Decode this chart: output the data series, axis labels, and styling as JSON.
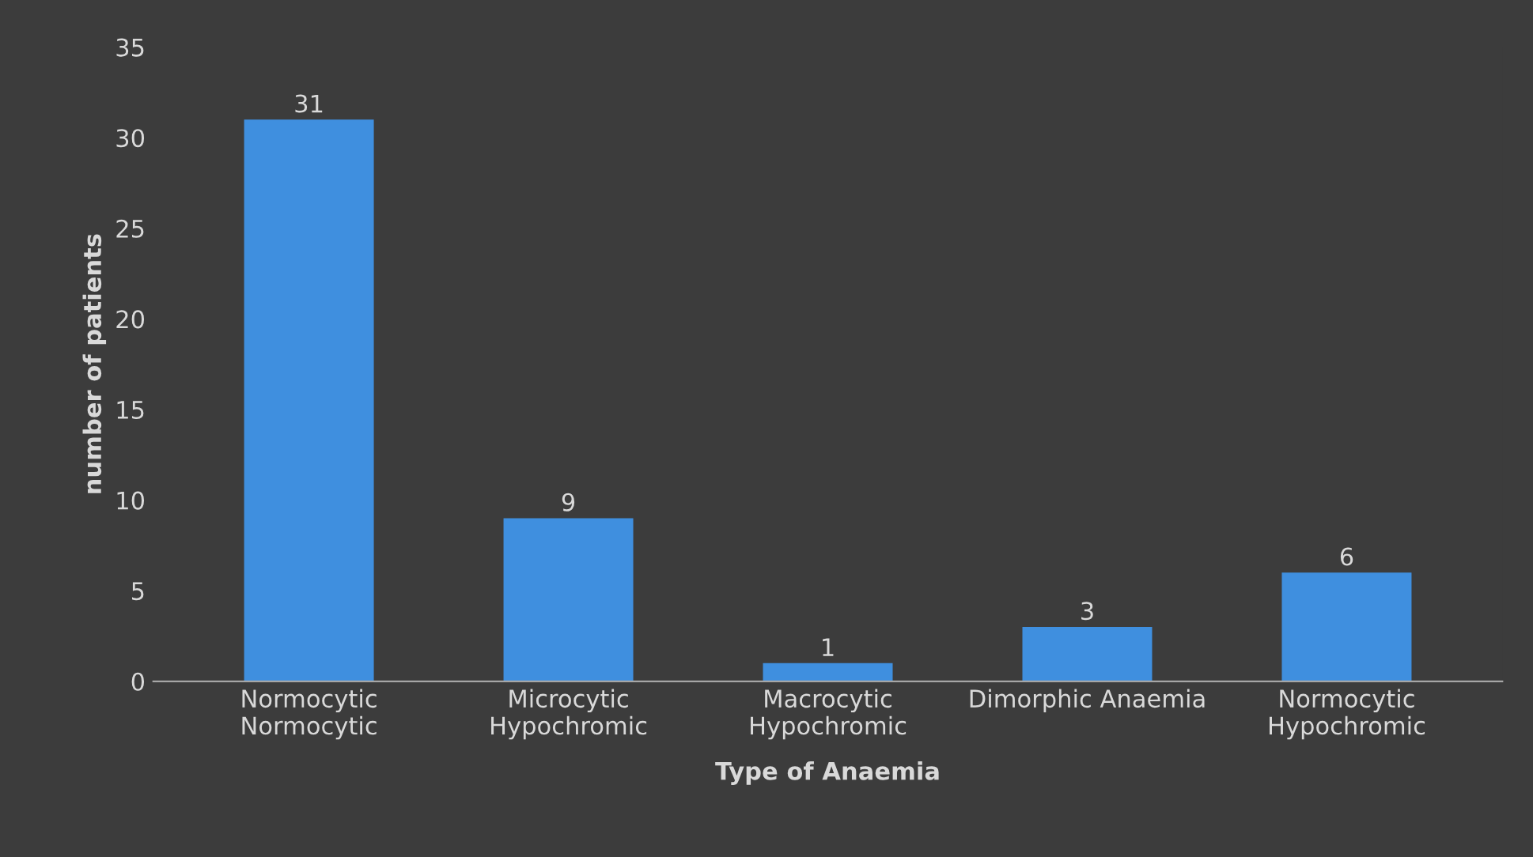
{
  "chart_data": {
    "type": "bar",
    "xlabel": "Type of Anaemia",
    "ylabel": "number of patients",
    "categories": [
      "Normocytic\nNormocytic",
      "Microcytic\nHypochromic",
      "Macrocytic\nHypochromic",
      "Dimorphic Anaemia",
      "Normocytic\nHypochromic"
    ],
    "values": [
      31,
      9,
      1,
      3,
      6
    ],
    "color": "#3f8fdf",
    "ylim": [
      0,
      35
    ],
    "yticks": [
      0,
      5,
      10,
      15,
      20,
      25,
      30,
      35
    ],
    "data_labels": true,
    "grid": false
  }
}
